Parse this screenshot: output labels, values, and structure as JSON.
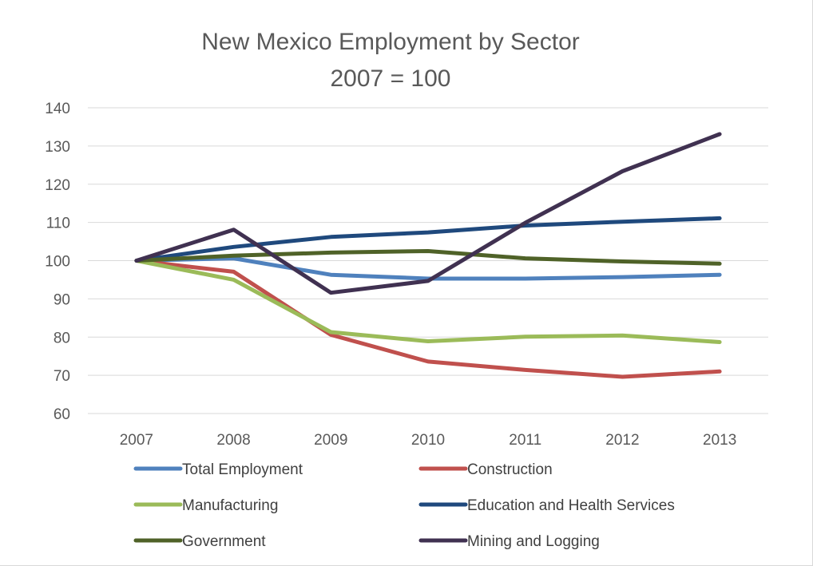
{
  "chart_data": {
    "type": "line",
    "title": "New Mexico Employment by Sector",
    "subtitle": "2007 = 100",
    "xlabel": "",
    "ylabel": "",
    "categories": [
      "2007",
      "2008",
      "2009",
      "2010",
      "2011",
      "2012",
      "2013"
    ],
    "ylim": [
      60,
      140
    ],
    "yticks": [
      60,
      70,
      80,
      90,
      100,
      110,
      120,
      130,
      140
    ],
    "grid": true,
    "legend_position": "bottom",
    "series": [
      {
        "name": "Total Employment",
        "color": "#4f81bd",
        "values": [
          100,
          100.6,
          96.3,
          95.3,
          95.3,
          95.7,
          96.3
        ]
      },
      {
        "name": "Construction",
        "color": "#c0504d",
        "values": [
          100,
          97.1,
          80.6,
          73.6,
          71.4,
          69.6,
          71.0
        ]
      },
      {
        "name": "Manufacturing",
        "color": "#9bbb59",
        "values": [
          100,
          95.0,
          81.3,
          78.9,
          80.1,
          80.4,
          78.7
        ]
      },
      {
        "name": "Education and Health Services",
        "color": "#1f497d",
        "values": [
          100,
          103.6,
          106.2,
          107.4,
          109.2,
          110.2,
          111.1
        ]
      },
      {
        "name": "Government",
        "color": "#4f6228",
        "values": [
          100,
          101.3,
          102.1,
          102.5,
          100.6,
          99.8,
          99.2
        ]
      },
      {
        "name": "Mining and Logging",
        "color": "#403151",
        "values": [
          100,
          108.1,
          91.6,
          94.7,
          109.9,
          123.4,
          133.1
        ]
      }
    ]
  }
}
